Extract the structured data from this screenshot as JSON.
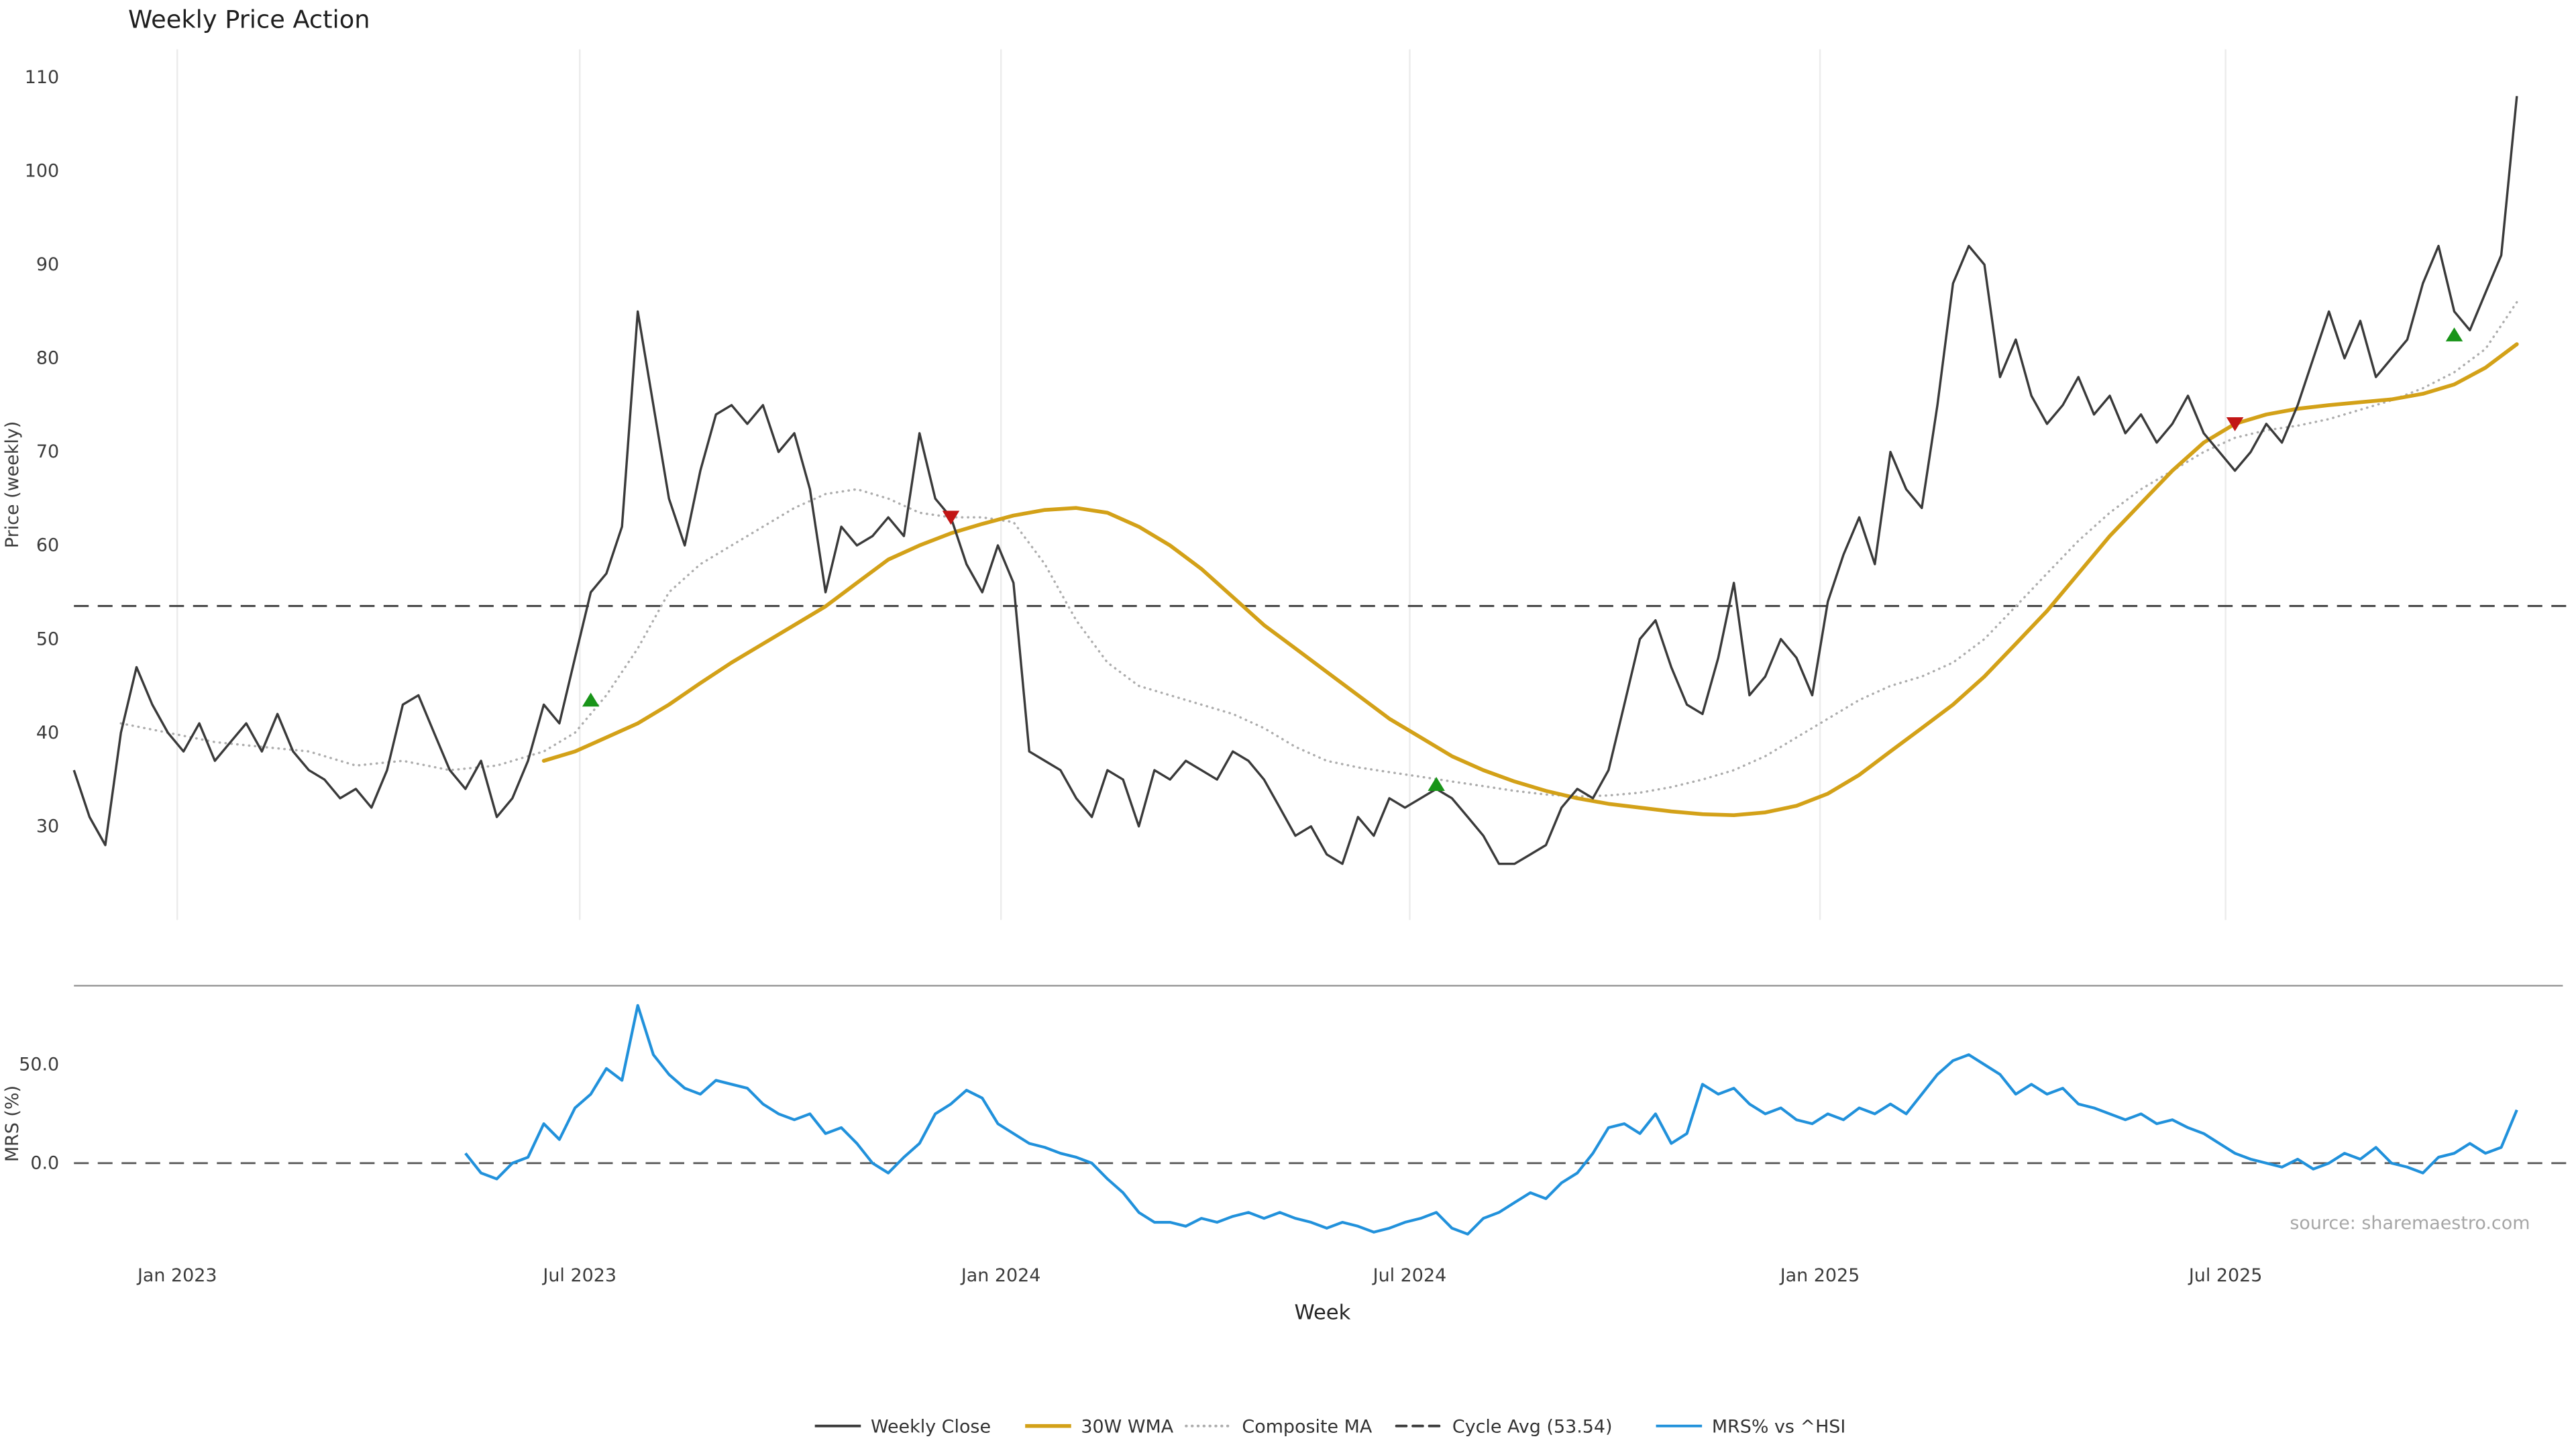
{
  "chart": {
    "title": "Weekly Price Action",
    "price_axis_label": "Price (weekly)",
    "mrs_axis_label": "MRS (%)",
    "x_axis_label": "Week",
    "source": "source: sharemaestro.com"
  },
  "colors": {
    "weekly_close": "#3a3a3a",
    "wma": "#d3a118",
    "composite": "#adadad",
    "cycle_avg": "#3c3c3c",
    "mrs": "#2191db",
    "buy_marker": "#189418",
    "sell_marker": "#c21515",
    "grid": "#ececec",
    "spine": "#9c9c9c"
  },
  "chart_data": {
    "type": "line",
    "title": "Weekly Price Action",
    "xlabel": "Week",
    "weeks_total": 157,
    "x_ticks": [
      {
        "label": "Jan 2023",
        "week": 6.6
      },
      {
        "label": "Jul 2023",
        "week": 32.3
      },
      {
        "label": "Jan 2024",
        "week": 59.2
      },
      {
        "label": "Jul 2024",
        "week": 85.3
      },
      {
        "label": "Jan 2025",
        "week": 111.5
      },
      {
        "label": "Jul 2025",
        "week": 137.4
      }
    ],
    "panels": [
      {
        "name": "price",
        "ylabel": "Price (weekly)",
        "ylim": [
          20,
          113
        ],
        "yticks": [
          30,
          40,
          50,
          60,
          70,
          80,
          90,
          100,
          110
        ],
        "grid": "vertical",
        "cycle_avg": {
          "name": "Cycle Avg (53.54)",
          "value": 53.54,
          "style": "dashed"
        },
        "series": [
          {
            "name": "Weekly Close",
            "style": "solid",
            "color_key": "weekly_close",
            "start_week": 0,
            "values": [
              36,
              31,
              28,
              40,
              47,
              43,
              40,
              38,
              41,
              37,
              39,
              41,
              38,
              42,
              38,
              36,
              35,
              33,
              34,
              32,
              36,
              43,
              44,
              40,
              36,
              34,
              37,
              31,
              33,
              37,
              43,
              41,
              48,
              55,
              57,
              62,
              85,
              75,
              65,
              60,
              68,
              74,
              75,
              73,
              75,
              70,
              72,
              66,
              55,
              62,
              60,
              61,
              63,
              61,
              72,
              65,
              63,
              58,
              55,
              60,
              56,
              38,
              37,
              36,
              33,
              31,
              36,
              35,
              30,
              36,
              35,
              37,
              36,
              35,
              38,
              37,
              35,
              32,
              29,
              30,
              27,
              26,
              31,
              29,
              33,
              32,
              33,
              34,
              33,
              31,
              29,
              26,
              26,
              27,
              28,
              32,
              34,
              33,
              36,
              43,
              50,
              52,
              47,
              43,
              42,
              48,
              56,
              44,
              46,
              50,
              48,
              44,
              54,
              59,
              63,
              58,
              70,
              66,
              64,
              75,
              88,
              92,
              90,
              78,
              82,
              76,
              73,
              75,
              78,
              74,
              76,
              72,
              74,
              71,
              73,
              76,
              72,
              70,
              68,
              70,
              73,
              71,
              75,
              80,
              85,
              80,
              84,
              78,
              80,
              82,
              88,
              92,
              85,
              83,
              87,
              91,
              108
            ]
          },
          {
            "name": "30W WMA",
            "style": "solid",
            "color_key": "wma",
            "points": [
              [
                30,
                37
              ],
              [
                32,
                38
              ],
              [
                34,
                39.5
              ],
              [
                36,
                41
              ],
              [
                38,
                43
              ],
              [
                40,
                45.3
              ],
              [
                42,
                47.5
              ],
              [
                44,
                49.5
              ],
              [
                46,
                51.5
              ],
              [
                48,
                53.5
              ],
              [
                50,
                56
              ],
              [
                52,
                58.5
              ],
              [
                54,
                60
              ],
              [
                56,
                61.3
              ],
              [
                58,
                62.3
              ],
              [
                60,
                63.2
              ],
              [
                62,
                63.8
              ],
              [
                64,
                64
              ],
              [
                66,
                63.5
              ],
              [
                68,
                62
              ],
              [
                70,
                60
              ],
              [
                72,
                57.5
              ],
              [
                74,
                54.5
              ],
              [
                76,
                51.5
              ],
              [
                78,
                49
              ],
              [
                80,
                46.5
              ],
              [
                82,
                44
              ],
              [
                84,
                41.5
              ],
              [
                86,
                39.5
              ],
              [
                88,
                37.5
              ],
              [
                90,
                36
              ],
              [
                92,
                34.8
              ],
              [
                94,
                33.8
              ],
              [
                96,
                33
              ],
              [
                98,
                32.4
              ],
              [
                100,
                32
              ],
              [
                102,
                31.6
              ],
              [
                104,
                31.3
              ],
              [
                106,
                31.2
              ],
              [
                108,
                31.5
              ],
              [
                110,
                32.2
              ],
              [
                112,
                33.5
              ],
              [
                114,
                35.5
              ],
              [
                116,
                38
              ],
              [
                118,
                40.5
              ],
              [
                120,
                43
              ],
              [
                122,
                46
              ],
              [
                124,
                49.5
              ],
              [
                126,
                53
              ],
              [
                128,
                57
              ],
              [
                130,
                61
              ],
              [
                132,
                64.5
              ],
              [
                134,
                68
              ],
              [
                136,
                71
              ],
              [
                138,
                73
              ],
              [
                140,
                74
              ],
              [
                142,
                74.6
              ],
              [
                144,
                75
              ],
              [
                146,
                75.3
              ],
              [
                148,
                75.6
              ],
              [
                150,
                76.2
              ],
              [
                152,
                77.2
              ],
              [
                154,
                79
              ],
              [
                156,
                81.5
              ]
            ]
          },
          {
            "name": "Composite MA",
            "style": "dotted",
            "color_key": "composite",
            "points": [
              [
                3,
                41
              ],
              [
                6,
                40
              ],
              [
                9,
                39
              ],
              [
                12,
                38.5
              ],
              [
                15,
                38
              ],
              [
                18,
                36.5
              ],
              [
                21,
                37
              ],
              [
                24,
                36
              ],
              [
                27,
                36.5
              ],
              [
                30,
                38
              ],
              [
                32,
                40
              ],
              [
                34,
                44
              ],
              [
                36,
                49
              ],
              [
                38,
                55
              ],
              [
                40,
                58
              ],
              [
                42,
                60
              ],
              [
                44,
                62
              ],
              [
                46,
                64
              ],
              [
                48,
                65.5
              ],
              [
                50,
                66
              ],
              [
                52,
                65
              ],
              [
                54,
                63.5
              ],
              [
                56,
                63
              ],
              [
                58,
                63
              ],
              [
                60,
                62.5
              ],
              [
                62,
                58
              ],
              [
                64,
                52
              ],
              [
                66,
                47.5
              ],
              [
                68,
                45
              ],
              [
                70,
                44
              ],
              [
                72,
                43
              ],
              [
                74,
                42
              ],
              [
                76,
                40.5
              ],
              [
                78,
                38.5
              ],
              [
                80,
                37
              ],
              [
                82,
                36.3
              ],
              [
                84,
                35.8
              ],
              [
                86,
                35.3
              ],
              [
                88,
                34.8
              ],
              [
                90,
                34.3
              ],
              [
                92,
                33.8
              ],
              [
                94,
                33.4
              ],
              [
                96,
                33.2
              ],
              [
                98,
                33.3
              ],
              [
                100,
                33.6
              ],
              [
                102,
                34.2
              ],
              [
                104,
                35
              ],
              [
                106,
                36
              ],
              [
                108,
                37.5
              ],
              [
                110,
                39.5
              ],
              [
                112,
                41.5
              ],
              [
                114,
                43.5
              ],
              [
                116,
                45
              ],
              [
                118,
                46
              ],
              [
                120,
                47.5
              ],
              [
                122,
                50
              ],
              [
                124,
                53.5
              ],
              [
                126,
                57
              ],
              [
                128,
                60.5
              ],
              [
                130,
                63.5
              ],
              [
                132,
                66
              ],
              [
                134,
                68
              ],
              [
                136,
                70
              ],
              [
                138,
                71.5
              ],
              [
                140,
                72.3
              ],
              [
                142,
                72.8
              ],
              [
                144,
                73.5
              ],
              [
                146,
                74.5
              ],
              [
                148,
                75.5
              ],
              [
                150,
                76.8
              ],
              [
                152,
                78.5
              ],
              [
                154,
                81
              ],
              [
                156,
                86
              ]
            ]
          }
        ],
        "signals": {
          "buy": {
            "marker": "triangle-up",
            "color_key": "buy_marker",
            "points": [
              [
                33,
                43.5
              ],
              [
                87,
                34.5
              ],
              [
                152,
                82.5
              ]
            ]
          },
          "sell": {
            "marker": "triangle-down",
            "color_key": "sell_marker",
            "points": [
              [
                56,
                63
              ],
              [
                138,
                73
              ]
            ]
          }
        }
      },
      {
        "name": "mrs",
        "ylabel": "MRS (%)",
        "ylim": [
          -50,
          90
        ],
        "yticks": [
          0,
          50
        ],
        "ytick_labels": [
          "0.0",
          "50.0"
        ],
        "zero_line": {
          "value": 0,
          "style": "dashed"
        },
        "series": [
          {
            "name": "MRS% vs ^HSI",
            "style": "solid",
            "color_key": "mrs",
            "start_week": 25,
            "values": [
              5,
              -5,
              -8,
              0,
              3,
              20,
              12,
              28,
              35,
              48,
              42,
              80,
              55,
              45,
              38,
              35,
              42,
              40,
              38,
              30,
              25,
              22,
              25,
              15,
              18,
              10,
              0,
              -5,
              3,
              10,
              25,
              30,
              37,
              33,
              20,
              15,
              10,
              8,
              5,
              3,
              0,
              -8,
              -15,
              -25,
              -30,
              -30,
              -32,
              -28,
              -30,
              -27,
              -25,
              -28,
              -25,
              -28,
              -30,
              -33,
              -30,
              -32,
              -35,
              -33,
              -30,
              -28,
              -25,
              -33,
              -36,
              -28,
              -25,
              -20,
              -15,
              -18,
              -10,
              -5,
              5,
              18,
              20,
              15,
              25,
              10,
              15,
              40,
              35,
              38,
              30,
              25,
              28,
              22,
              20,
              25,
              22,
              28,
              25,
              30,
              25,
              35,
              45,
              52,
              55,
              50,
              45,
              35,
              40,
              35,
              38,
              30,
              28,
              25,
              22,
              25,
              20,
              22,
              18,
              15,
              10,
              5,
              2,
              0,
              -2,
              2,
              -3,
              0,
              5,
              2,
              8,
              0,
              -2,
              -5,
              3,
              5,
              10,
              5,
              8,
              27
            ]
          }
        ]
      }
    ]
  },
  "legend": {
    "items": [
      {
        "label": "Weekly Close",
        "color_key": "weekly_close",
        "style": "solid"
      },
      {
        "label": "30W WMA",
        "color_key": "wma",
        "style": "solid"
      },
      {
        "label": "Composite MA",
        "color_key": "composite",
        "style": "dotted"
      },
      {
        "label": "Cycle Avg (53.54)",
        "color_key": "cycle_avg",
        "style": "dashed"
      },
      {
        "label": "MRS% vs ^HSI",
        "color_key": "mrs",
        "style": "solid"
      }
    ]
  }
}
